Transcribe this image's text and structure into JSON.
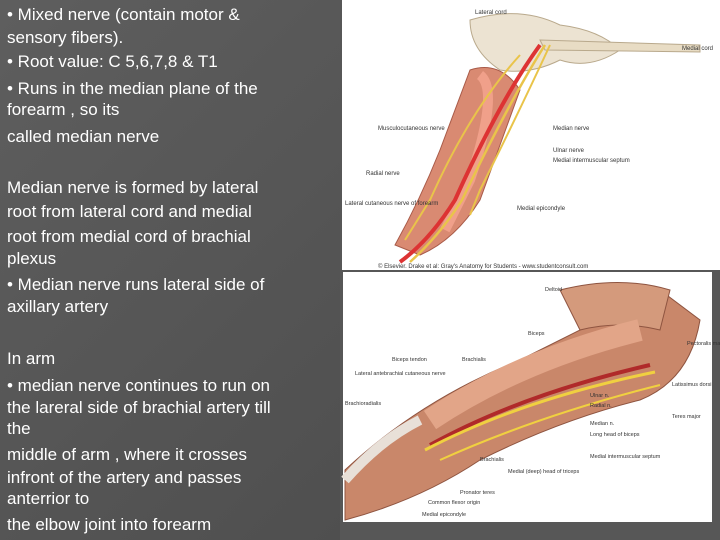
{
  "text_blocks": [
    {
      "lines": [
        "• Mixed nerve (contain motor &",
        "sensory fibers).",
        "• Root value: C 5,6,7,8 & T1",
        "• Runs in the median plane of the",
        "forearm , so its",
        "called median nerve"
      ]
    },
    {
      "lines": [
        "Median nerve is formed by lateral",
        "root from lateral cord and medial",
        "root from medial cord of brachial",
        "plexus",
        "• Median nerve runs lateral side of",
        "axillary artery"
      ]
    },
    {
      "lines": [
        "In arm",
        "• median nerve continues to run on",
        "the lareral side of brachial artery till",
        "the",
        "middle of arm , where it crosses",
        "infront of the artery and passes",
        "anterrior to",
        "the elbow joint into forearm"
      ]
    }
  ],
  "figure_top": {
    "labels": [
      "Lateral cord",
      "Medial cord",
      "Musculocutaneous nerve",
      "Median nerve",
      "Ulnar nerve",
      "Medial intermuscular septum",
      "Radial nerve",
      "Lateral cutaneous nerve of forearm",
      "Medial epicondyle"
    ],
    "caption": "© Elsevier. Drake et al: Gray's Anatomy for Students - www.studentconsult.com"
  },
  "figure_bottom": {
    "labels": [
      "Deltoid",
      "Biceps",
      "Pectoralis major",
      "Biceps tendon",
      "Brachialis",
      "Lateral antebrachial cutaneous nerve",
      "Brachioradialis",
      "Ulnar n.",
      "Radial n.",
      "Median n.",
      "Long head of biceps",
      "Medial intermuscular septum",
      "Latissimus dorsi",
      "Teres major",
      "Brachialis",
      "Medial (deep) head of triceps",
      "Pronator teres",
      "Common flexor origin",
      "Medial epicondyle"
    ]
  }
}
